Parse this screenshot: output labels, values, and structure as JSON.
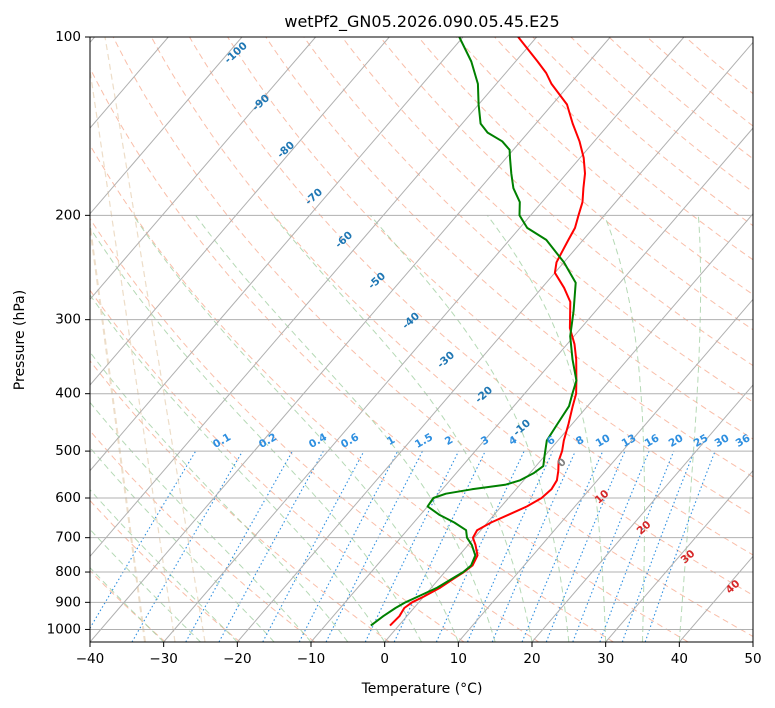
{
  "chart_data": {
    "type": "line",
    "subtype": "skew-t log-p diagram",
    "title": "wetPf2_GN05.2026.090.05.45.E25",
    "xlabel": "Temperature (°C)",
    "ylabel": "Pressure (hPa)",
    "xlim": [
      -40,
      50
    ],
    "ylim": [
      1050,
      100
    ],
    "x_ticks": [
      -40,
      -30,
      -20,
      -10,
      0,
      10,
      20,
      30,
      40,
      50
    ],
    "y_ticks": [
      1000,
      900,
      800,
      700,
      600,
      500,
      400,
      300,
      200,
      100
    ],
    "x_tick_labels": [
      "−40",
      "−30",
      "−20",
      "−10",
      "0",
      "10",
      "20",
      "30",
      "40",
      "50"
    ],
    "y_tick_labels": [
      "1000",
      "900",
      "800",
      "700",
      "600",
      "500",
      "400",
      "300",
      "200",
      "100"
    ],
    "series": [
      {
        "name": "Temperature",
        "color": "#ff0000",
        "points": [
          [
            985,
            -1.2
          ],
          [
            950,
            -1.0
          ],
          [
            920,
            -1.3
          ],
          [
            900,
            -0.9
          ],
          [
            880,
            0.0
          ],
          [
            850,
            1.2
          ],
          [
            820,
            2.0
          ],
          [
            800,
            2.6
          ],
          [
            780,
            3.0
          ],
          [
            750,
            2.5
          ],
          [
            720,
            1.0
          ],
          [
            700,
            -0.2
          ],
          [
            680,
            -0.5
          ],
          [
            660,
            0.5
          ],
          [
            640,
            2.0
          ],
          [
            620,
            3.5
          ],
          [
            600,
            4.5
          ],
          [
            580,
            4.8
          ],
          [
            560,
            4.5
          ],
          [
            540,
            3.6
          ],
          [
            520,
            2.5
          ],
          [
            500,
            1.8
          ],
          [
            480,
            0.8
          ],
          [
            450,
            -0.5
          ],
          [
            420,
            -2.0
          ],
          [
            400,
            -3.0
          ],
          [
            380,
            -4.5
          ],
          [
            350,
            -7.0
          ],
          [
            330,
            -9.0
          ],
          [
            310,
            -11.5
          ],
          [
            280,
            -14.5
          ],
          [
            265,
            -17.0
          ],
          [
            250,
            -20.0
          ],
          [
            240,
            -21.0
          ],
          [
            230,
            -21.5
          ],
          [
            220,
            -22.0
          ],
          [
            210,
            -22.5
          ],
          [
            200,
            -23.5
          ],
          [
            190,
            -24.5
          ],
          [
            180,
            -26.0
          ],
          [
            170,
            -27.5
          ],
          [
            160,
            -29.5
          ],
          [
            150,
            -32.0
          ],
          [
            140,
            -35.0
          ],
          [
            130,
            -38.0
          ],
          [
            120,
            -42.5
          ],
          [
            115,
            -44.5
          ],
          [
            110,
            -47.0
          ],
          [
            100,
            -52.5
          ]
        ]
      },
      {
        "name": "Dewpoint",
        "color": "#008000",
        "points": [
          [
            985,
            -3.8
          ],
          [
            950,
            -3.2
          ],
          [
            920,
            -2.5
          ],
          [
            900,
            -1.8
          ],
          [
            880,
            -0.8
          ],
          [
            850,
            0.8
          ],
          [
            820,
            1.8
          ],
          [
            800,
            2.5
          ],
          [
            780,
            2.8
          ],
          [
            750,
            2.2
          ],
          [
            720,
            0.5
          ],
          [
            700,
            -1.0
          ],
          [
            680,
            -2.0
          ],
          [
            660,
            -4.5
          ],
          [
            640,
            -7.5
          ],
          [
            620,
            -10.0
          ],
          [
            600,
            -10.2
          ],
          [
            590,
            -9.0
          ],
          [
            580,
            -6.0
          ],
          [
            570,
            -2.0
          ],
          [
            560,
            -0.5
          ],
          [
            545,
            0.5
          ],
          [
            530,
            1.0
          ],
          [
            510,
            0.0
          ],
          [
            480,
            -1.5
          ],
          [
            450,
            -2.0
          ],
          [
            420,
            -2.5
          ],
          [
            400,
            -3.5
          ],
          [
            380,
            -4.5
          ],
          [
            350,
            -7.5
          ],
          [
            320,
            -10.5
          ],
          [
            290,
            -13.0
          ],
          [
            260,
            -16.0
          ],
          [
            240,
            -20.0
          ],
          [
            220,
            -25.0
          ],
          [
            210,
            -29.0
          ],
          [
            200,
            -31.5
          ],
          [
            190,
            -33.0
          ],
          [
            180,
            -35.5
          ],
          [
            170,
            -37.5
          ],
          [
            160,
            -39.5
          ],
          [
            155,
            -40.5
          ],
          [
            150,
            -42.5
          ],
          [
            145,
            -45.5
          ],
          [
            140,
            -47.5
          ],
          [
            130,
            -50.0
          ],
          [
            120,
            -52.5
          ],
          [
            110,
            -56.0
          ],
          [
            100,
            -60.5
          ]
        ]
      }
    ],
    "dry_adiabat_labels": [
      "-100",
      "-90",
      "-80",
      "-70",
      "-60",
      "-50",
      "-40",
      "-30",
      "-20",
      "-10",
      "0",
      "10",
      "20",
      "30",
      "40"
    ],
    "mixing_ratio_labels": [
      "0.1",
      "0.2",
      "0.4",
      "0.6",
      "1",
      "1.5",
      "2",
      "3",
      "4",
      "6",
      "8",
      "10",
      "13",
      "16",
      "20",
      "25",
      "30",
      "36"
    ],
    "background_lines": [
      "isotherms",
      "dry adiabats",
      "moist adiabats",
      "mixing ratio lines"
    ],
    "grid": true
  }
}
